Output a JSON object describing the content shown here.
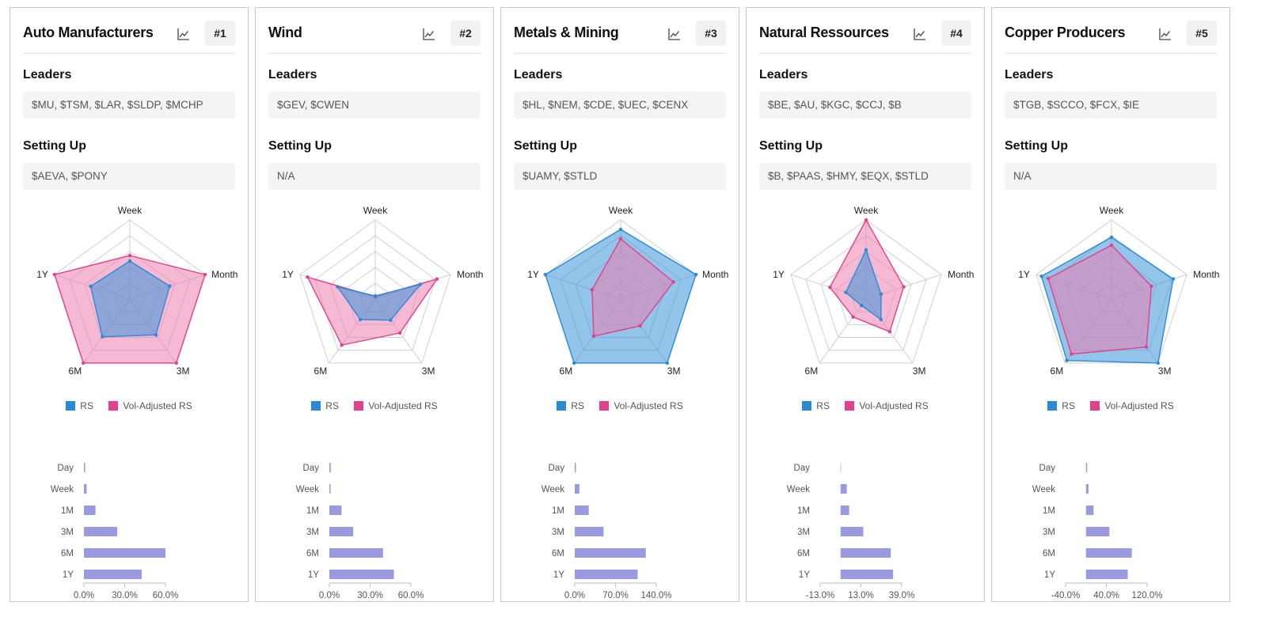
{
  "labels": {
    "leaders": "Leaders",
    "setting_up": "Setting Up",
    "legend_rs": "RS",
    "legend_vol": "Vol-Adjusted RS"
  },
  "colors": {
    "rs_stroke": "#2b8ad8",
    "rs_fill": "#3a94d9",
    "vol_stroke": "#e0408c",
    "vol_fill": "#ec7fb0",
    "bar": "#9a9ae0",
    "grid": "#cfcfcf"
  },
  "icons": {
    "chart": "line-chart-icon"
  },
  "cards": [
    {
      "title": "Auto Manufacturers",
      "rank": "#1",
      "leaders": "$MU, $TSM, $LAR, $SLDP, $MCHP",
      "setting_up": "$AEVA, $PONY",
      "chart_data": [
        {
          "type": "radar",
          "axes": [
            "Week",
            "Month",
            "3M",
            "6M",
            "1Y"
          ],
          "series": [
            {
              "name": "RS",
              "values": [
                0.48,
                0.53,
                0.56,
                0.59,
                0.52
              ]
            },
            {
              "name": "Vol-Adjusted RS",
              "values": [
                0.55,
                1.0,
                1.0,
                1.0,
                1.0
              ]
            }
          ]
        },
        {
          "type": "bar",
          "categories": [
            "Day",
            "Week",
            "1M",
            "3M",
            "6M",
            "1Y"
          ],
          "values": [
            0.4,
            2.0,
            8.5,
            24.5,
            60.0,
            42.5
          ],
          "ticks": [
            "0.0%",
            "30.0%",
            "60.0%"
          ],
          "xlim": [
            0,
            60
          ]
        }
      ]
    },
    {
      "title": "Wind",
      "rank": "#2",
      "leaders": "$GEV, $CWEN",
      "setting_up": "N/A",
      "chart_data": [
        {
          "type": "radar",
          "axes": [
            "Week",
            "Month",
            "3M",
            "6M",
            "1Y"
          ],
          "series": [
            {
              "name": "RS",
              "values": [
                0.04,
                0.6,
                0.33,
                0.32,
                0.5
              ]
            },
            {
              "name": "Vol-Adjusted RS",
              "values": [
                0.03,
                0.82,
                0.53,
                0.72,
                0.9
              ]
            }
          ]
        },
        {
          "type": "bar",
          "categories": [
            "Day",
            "Week",
            "1M",
            "3M",
            "6M",
            "1Y"
          ],
          "values": [
            1.0,
            0.8,
            9.0,
            17.5,
            39.5,
            47.5
          ],
          "ticks": [
            "0.0%",
            "30.0%",
            "60.0%"
          ],
          "xlim": [
            0,
            60
          ]
        }
      ]
    },
    {
      "title": "Metals & Mining",
      "rank": "#3",
      "leaders": "$HL, $NEM, $CDE, $UEC, $CENX",
      "setting_up": "$UAMY, $STLD",
      "chart_data": [
        {
          "type": "radar",
          "axes": [
            "Week",
            "Month",
            "3M",
            "6M",
            "1Y"
          ],
          "series": [
            {
              "name": "RS",
              "values": [
                0.88,
                1.0,
                1.0,
                1.0,
                1.0
              ]
            },
            {
              "name": "Vol-Adjusted RS",
              "values": [
                0.76,
                0.7,
                0.42,
                0.58,
                0.38
              ]
            }
          ]
        },
        {
          "type": "bar",
          "categories": [
            "Day",
            "Week",
            "1M",
            "3M",
            "6M",
            "1Y"
          ],
          "values": [
            0.5,
            8.0,
            24.0,
            49.5,
            122.0,
            108.0
          ],
          "ticks": [
            "0.0%",
            "70.0%",
            "140.0%"
          ],
          "xlim": [
            0,
            140
          ]
        }
      ]
    },
    {
      "title": "Natural Ressources",
      "rank": "#4",
      "leaders": "$BE, $AU, $KGC, $CCJ, $B",
      "setting_up": "$B, $PAAS, $HMY, $EQX, $STLD",
      "chart_data": [
        {
          "type": "radar",
          "axes": [
            "Week",
            "Month",
            "3M",
            "6M",
            "1Y"
          ],
          "series": [
            {
              "name": "RS",
              "values": [
                0.62,
                0.2,
                0.32,
                0.1,
                0.27
              ]
            },
            {
              "name": "Vol-Adjusted RS",
              "values": [
                1.0,
                0.5,
                0.51,
                0.28,
                0.48
              ]
            }
          ]
        },
        {
          "type": "bar",
          "categories": [
            "Day",
            "Week",
            "1M",
            "3M",
            "6M",
            "1Y"
          ],
          "values": [
            0.0,
            4.0,
            5.5,
            14.5,
            32.0,
            33.5
          ],
          "ticks": [
            "-13.0%",
            "13.0%",
            "39.0%"
          ],
          "xlim": [
            -13,
            39
          ]
        }
      ]
    },
    {
      "title": "Copper Producers",
      "rank": "#5",
      "leaders": "$TGB, $SCCO, $FCX, $IE",
      "setting_up": "N/A",
      "chart_data": [
        {
          "type": "radar",
          "axes": [
            "Week",
            "Month",
            "3M",
            "6M",
            "1Y"
          ],
          "series": [
            {
              "name": "RS",
              "values": [
                0.78,
                0.82,
                1.0,
                0.96,
                0.93
              ]
            },
            {
              "name": "Vol-Adjusted RS",
              "values": [
                0.68,
                0.53,
                0.75,
                0.86,
                0.84
              ]
            }
          ]
        },
        {
          "type": "bar",
          "categories": [
            "Day",
            "Week",
            "1M",
            "3M",
            "6M",
            "1Y"
          ],
          "values": [
            0.5,
            5.0,
            15.0,
            46.0,
            90.0,
            82.0
          ],
          "ticks": [
            "-40.0%",
            "40.0%",
            "120.0%"
          ],
          "xlim": [
            -40,
            120
          ]
        }
      ]
    }
  ]
}
